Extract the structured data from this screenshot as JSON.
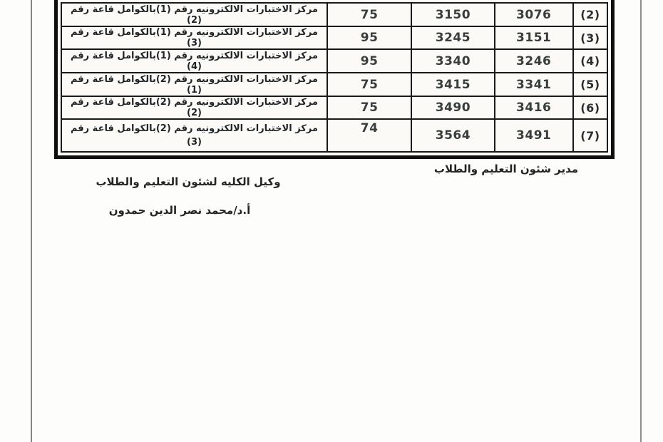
{
  "table": {
    "rows": [
      {
        "center": "مركز الاختبارات الالكترونيه رقم (1)بالكوامل قاعة رقم",
        "hall": "(2)",
        "seats": "75",
        "to": "3150",
        "from": "3076",
        "index": "(2)"
      },
      {
        "center": "مركز الاختبارات الالكترونيه رقم (1)بالكوامل قاعة رقم",
        "hall": "(3)",
        "seats": "95",
        "to": "3245",
        "from": "3151",
        "index": "(3)"
      },
      {
        "center": "مركز الاختبارات الالكترونيه رقم (1)بالكوامل قاعة رقم",
        "hall": "(4)",
        "seats": "95",
        "to": "3340",
        "from": "3246",
        "index": "(4)"
      },
      {
        "center": "مركز الاختبارات الالكترونيه رقم (2)بالكوامل قاعة رقم",
        "hall": "(1)",
        "seats": "75",
        "to": "3415",
        "from": "3341",
        "index": "(5)"
      },
      {
        "center": "مركز الاختبارات الالكترونيه رقم (2)بالكوامل قاعة رقم",
        "hall": "(2)",
        "seats": "75",
        "to": "3490",
        "from": "3416",
        "index": "(6)"
      },
      {
        "center": "مركز الاختبارات الالكترونيه رقم (2)بالكوامل قاعة رقم",
        "hall": "(3)",
        "seats": "74",
        "to": "3564",
        "from": "3491",
        "index": "(7)"
      }
    ]
  },
  "signatures": {
    "director_title": "مدير شئون التعليم والطلاب",
    "vice_dean_title": "وكيل الكليه لشئون التعليم والطلاب",
    "vice_dean_name": "أ.د/محمد نصر الدين حمدون"
  },
  "colors": {
    "border": "#0f0f0f",
    "text": "#1f2428",
    "scan_edge": "#858585"
  }
}
